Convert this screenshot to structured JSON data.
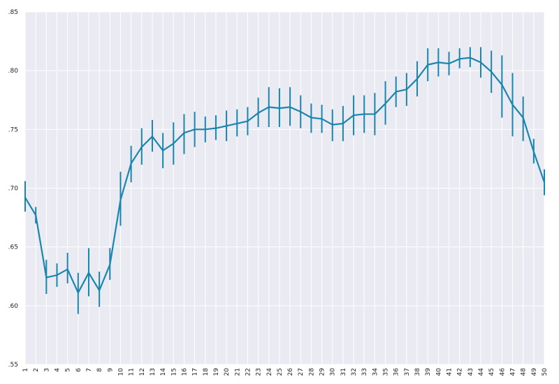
{
  "chart_data": {
    "type": "line",
    "title": "",
    "xlabel": "",
    "ylabel": "",
    "ylim": [
      0.55,
      0.85
    ],
    "grid": true,
    "y_ticks": [
      0.55,
      0.6,
      0.65,
      0.7,
      0.75,
      0.8,
      0.85
    ],
    "y_tick_labels": [
      ".55",
      ".60",
      ".65",
      ".70",
      ".75",
      ".80",
      ".85"
    ],
    "x": [
      1,
      2,
      3,
      4,
      5,
      6,
      7,
      8,
      9,
      10,
      11,
      12,
      13,
      14,
      15,
      16,
      17,
      18,
      19,
      20,
      21,
      22,
      23,
      24,
      25,
      26,
      27,
      28,
      29,
      30,
      31,
      32,
      33,
      34,
      35,
      36,
      37,
      38,
      39,
      40,
      41,
      42,
      43,
      44,
      45,
      46,
      47,
      48,
      49,
      50
    ],
    "x_tick_labels": [
      "1",
      "2",
      "3",
      "4",
      "5",
      "6",
      "7",
      "8",
      "9",
      "10",
      "11",
      "12",
      "13",
      "14",
      "15",
      "16",
      "17",
      "18",
      "19",
      "20",
      "21",
      "22",
      "23",
      "24",
      "25",
      "26",
      "27",
      "28",
      "29",
      "30",
      "31",
      "32",
      "33",
      "34",
      "35",
      "36",
      "37",
      "38",
      "39",
      "40",
      "41",
      "42",
      "43",
      "44",
      "45",
      "46",
      "47",
      "48",
      "49",
      "50"
    ],
    "series": [
      {
        "values": [
          0.692,
          0.677,
          0.624,
          0.626,
          0.631,
          0.611,
          0.628,
          0.613,
          0.635,
          0.69,
          0.721,
          0.735,
          0.744,
          0.732,
          0.738,
          0.747,
          0.75,
          0.75,
          0.751,
          0.753,
          0.755,
          0.757,
          0.764,
          0.769,
          0.768,
          0.769,
          0.765,
          0.76,
          0.759,
          0.754,
          0.755,
          0.762,
          0.763,
          0.763,
          0.772,
          0.782,
          0.784,
          0.793,
          0.805,
          0.807,
          0.806,
          0.81,
          0.811,
          0.807,
          0.799,
          0.788,
          0.771,
          0.76,
          0.731,
          0.705
        ],
        "err_low": [
          0.68,
          0.67,
          0.61,
          0.616,
          0.619,
          0.593,
          0.608,
          0.599,
          0.622,
          0.668,
          0.705,
          0.72,
          0.731,
          0.717,
          0.72,
          0.729,
          0.735,
          0.739,
          0.741,
          0.74,
          0.744,
          0.745,
          0.752,
          0.752,
          0.752,
          0.753,
          0.751,
          0.747,
          0.747,
          0.74,
          0.74,
          0.745,
          0.747,
          0.745,
          0.754,
          0.769,
          0.77,
          0.778,
          0.791,
          0.795,
          0.796,
          0.802,
          0.803,
          0.794,
          0.781,
          0.76,
          0.744,
          0.74,
          0.721,
          0.694
        ],
        "err_high": [
          0.706,
          0.684,
          0.639,
          0.636,
          0.645,
          0.628,
          0.649,
          0.629,
          0.649,
          0.714,
          0.736,
          0.751,
          0.758,
          0.747,
          0.756,
          0.763,
          0.765,
          0.761,
          0.762,
          0.766,
          0.767,
          0.769,
          0.777,
          0.786,
          0.785,
          0.786,
          0.779,
          0.772,
          0.771,
          0.767,
          0.77,
          0.779,
          0.779,
          0.781,
          0.791,
          0.795,
          0.798,
          0.808,
          0.819,
          0.819,
          0.816,
          0.819,
          0.82,
          0.82,
          0.817,
          0.813,
          0.798,
          0.778,
          0.742,
          0.716
        ]
      }
    ]
  },
  "colors": {
    "background": "#eaeaf2",
    "grid": "#ffffff",
    "line": "#1a86ad",
    "error_bar": "#1a86ad"
  }
}
